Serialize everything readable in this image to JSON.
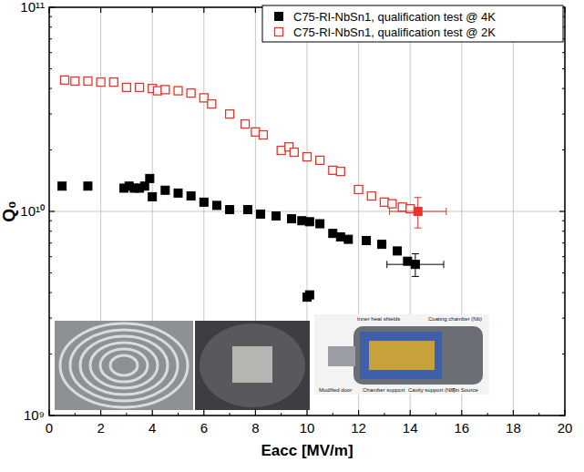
{
  "chart_data": {
    "type": "scatter",
    "x_label": "Eacc [MV/m]",
    "y_label": "Q₀",
    "xlim": [
      0,
      20
    ],
    "xticks": [
      0,
      2,
      4,
      6,
      8,
      10,
      12,
      14,
      16,
      18,
      20
    ],
    "ylim": [
      1000000000.0,
      100000000000.0
    ],
    "yticks": [
      {
        "value": 1000000000.0,
        "label": "10⁹"
      },
      {
        "value": 10000000000.0,
        "label": "10¹⁰"
      },
      {
        "value": 100000000000.0,
        "label": "10¹¹"
      }
    ],
    "log": "y",
    "grid": true,
    "legend": "top-right",
    "annotations": [
      "Inner heat shields",
      "Coating chamber (Nb)",
      "Modified door",
      "Chamber support",
      "Cavity support (Nb)",
      "Tin Source"
    ],
    "series": [
      {
        "name": "C75-RI-NbSn1, qualification test @ 4K",
        "color": "#000000",
        "marker": "square",
        "x": [
          0.5,
          1.5,
          2.9,
          3.1,
          3.3,
          3.5,
          3.7,
          3.9,
          4.0,
          4.5,
          5.0,
          5.5,
          6.0,
          6.5,
          7.0,
          7.7,
          8.2,
          8.8,
          9.4,
          9.8,
          10.1,
          10.5,
          11.0,
          11.3,
          11.6,
          12.3,
          12.9,
          13.5,
          13.9,
          10.0,
          10.1,
          14.2
        ],
        "values": [
          13300000000.0,
          13300000000.0,
          13000000000.0,
          13300000000.0,
          13000000000.0,
          13000000000.0,
          13300000000.0,
          14500000000.0,
          11800000000.0,
          12700000000.0,
          12300000000.0,
          11900000000.0,
          11100000000.0,
          10700000000.0,
          10200000000.0,
          10200000000.0,
          9700000000.0,
          9500000000.0,
          9200000000.0,
          9000000000.0,
          8900000000.0,
          8700000000.0,
          7800000000.0,
          7500000000.0,
          7300000000.0,
          7200000000.0,
          6900000000.0,
          6400000000.0,
          5700000000.0,
          3800000000.0,
          3900000000.0,
          5500000000.0
        ],
        "x_errors": [
          null,
          null,
          null,
          null,
          null,
          null,
          null,
          null,
          null,
          null,
          null,
          null,
          null,
          null,
          null,
          null,
          null,
          null,
          null,
          null,
          null,
          null,
          null,
          null,
          null,
          null,
          null,
          null,
          null,
          null,
          null,
          1.1
        ],
        "y_errors": [
          null,
          null,
          null,
          null,
          null,
          null,
          null,
          null,
          null,
          null,
          null,
          null,
          null,
          null,
          null,
          null,
          null,
          null,
          null,
          null,
          null,
          null,
          null,
          null,
          null,
          null,
          null,
          null,
          null,
          null,
          null,
          700000000.0
        ]
      },
      {
        "name": "C75-RI-NbSn1, qualification test @ 2K",
        "color": "#e8342b",
        "marker": "open-square",
        "x": [
          0.6,
          1.0,
          1.5,
          2.0,
          2.5,
          3.0,
          3.5,
          4.0,
          4.2,
          4.5,
          5.0,
          5.5,
          6.0,
          6.3,
          7.0,
          7.6,
          8.0,
          8.3,
          9.0,
          9.3,
          9.5,
          10.0,
          10.5,
          11.0,
          11.3,
          12.0,
          12.5,
          13.0,
          13.3,
          13.7,
          14.0,
          14.3
        ],
        "values": [
          44000000000.0,
          43500000000.0,
          43500000000.0,
          43000000000.0,
          43000000000.0,
          40500000000.0,
          40500000000.0,
          40000000000.0,
          39000000000.0,
          39500000000.0,
          39000000000.0,
          38000000000.0,
          36000000000.0,
          33600000000.0,
          30000000000.0,
          26800000000.0,
          24500000000.0,
          23700000000.0,
          19900000000.0,
          20700000000.0,
          19500000000.0,
          18500000000.0,
          17800000000.0,
          15900000000.0,
          15700000000.0,
          12800000000.0,
          11900000000.0,
          11100000000.0,
          10900000000.0,
          10500000000.0,
          10300000000.0,
          10000000000.0
        ],
        "x_errors": [
          null,
          null,
          null,
          null,
          null,
          null,
          null,
          null,
          null,
          null,
          null,
          null,
          null,
          null,
          null,
          null,
          null,
          null,
          null,
          null,
          null,
          null,
          null,
          null,
          null,
          null,
          null,
          null,
          null,
          null,
          null,
          1.1
        ],
        "y_errors": [
          null,
          null,
          null,
          null,
          null,
          null,
          null,
          null,
          null,
          null,
          null,
          null,
          null,
          null,
          null,
          null,
          null,
          null,
          null,
          null,
          null,
          null,
          null,
          null,
          null,
          null,
          null,
          null,
          null,
          null,
          null,
          1700000000.0
        ]
      }
    ]
  }
}
